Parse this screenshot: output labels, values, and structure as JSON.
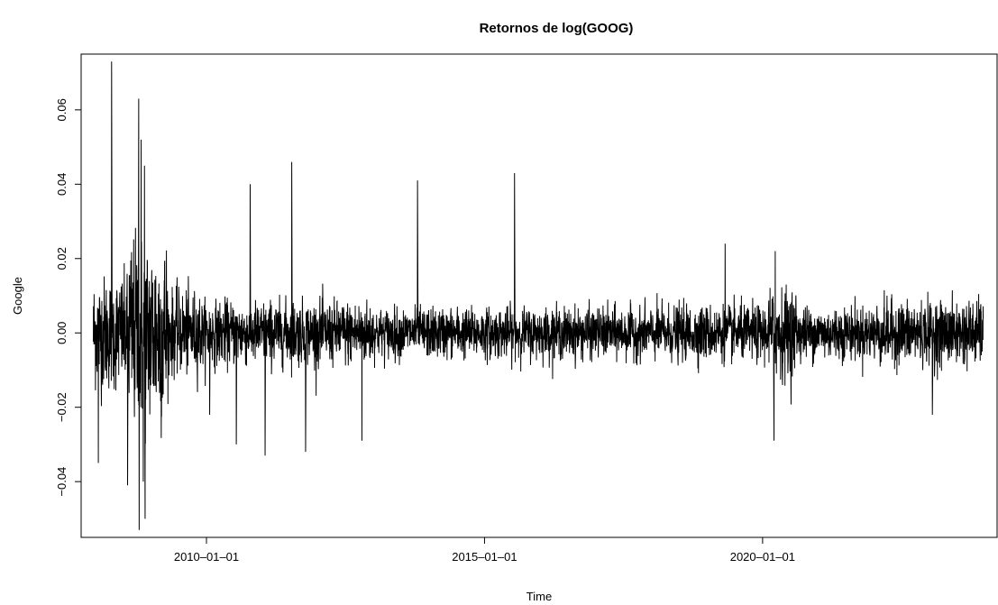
{
  "chart_data": {
    "type": "line",
    "title": "Retornos de log(GOOG)",
    "xlabel": "Time",
    "ylabel": "Google",
    "x_start": "2007-12-20",
    "x_end": "2023-12-20",
    "xlim": [
      "2007-10-01",
      "2024-03-20"
    ],
    "ylim": [
      -0.055,
      0.075
    ],
    "x_ticks": [
      {
        "date": "2010-01-01",
        "label": "2010–01–01"
      },
      {
        "date": "2015-01-01",
        "label": "2015–01–01"
      },
      {
        "date": "2020-01-01",
        "label": "2020–01–01"
      }
    ],
    "y_ticks": [
      {
        "value": -0.04,
        "label": "−0.04"
      },
      {
        "value": -0.02,
        "label": "−0.02"
      },
      {
        "value": 0.0,
        "label": "0.00"
      },
      {
        "value": 0.02,
        "label": "0.02"
      },
      {
        "value": 0.04,
        "label": "0.04"
      },
      {
        "value": 0.06,
        "label": "0.06"
      }
    ],
    "grid": false,
    "legend": "none",
    "line_color": "#000000",
    "spikes": [
      {
        "date": "2008-04-18",
        "value": 0.073
      },
      {
        "date": "2008-10-13",
        "value": 0.063
      },
      {
        "date": "2008-10-29",
        "value": 0.052
      },
      {
        "date": "2008-11-20",
        "value": 0.045
      },
      {
        "date": "2008-10-16",
        "value": -0.053
      },
      {
        "date": "2008-11-24",
        "value": -0.05
      },
      {
        "date": "2008-11-12",
        "value": -0.04
      },
      {
        "date": "2008-08-01",
        "value": -0.041
      },
      {
        "date": "2008-01-22",
        "value": -0.035
      },
      {
        "date": "2010-10-15",
        "value": 0.04
      },
      {
        "date": "2011-07-15",
        "value": 0.046
      },
      {
        "date": "2013-10-18",
        "value": 0.041
      },
      {
        "date": "2015-07-17",
        "value": 0.043
      },
      {
        "date": "2019-04-30",
        "value": 0.024
      },
      {
        "date": "2020-03-24",
        "value": 0.022
      },
      {
        "date": "2020-03-16",
        "value": -0.029
      },
      {
        "date": "2011-01-21",
        "value": -0.033
      },
      {
        "date": "2011-10-14",
        "value": -0.032
      },
      {
        "date": "2012-10-18",
        "value": -0.029
      },
      {
        "date": "2010-07-16",
        "value": -0.03
      },
      {
        "date": "2010-01-22",
        "value": -0.022
      },
      {
        "date": "2023-01-20",
        "value": -0.022
      }
    ]
  }
}
